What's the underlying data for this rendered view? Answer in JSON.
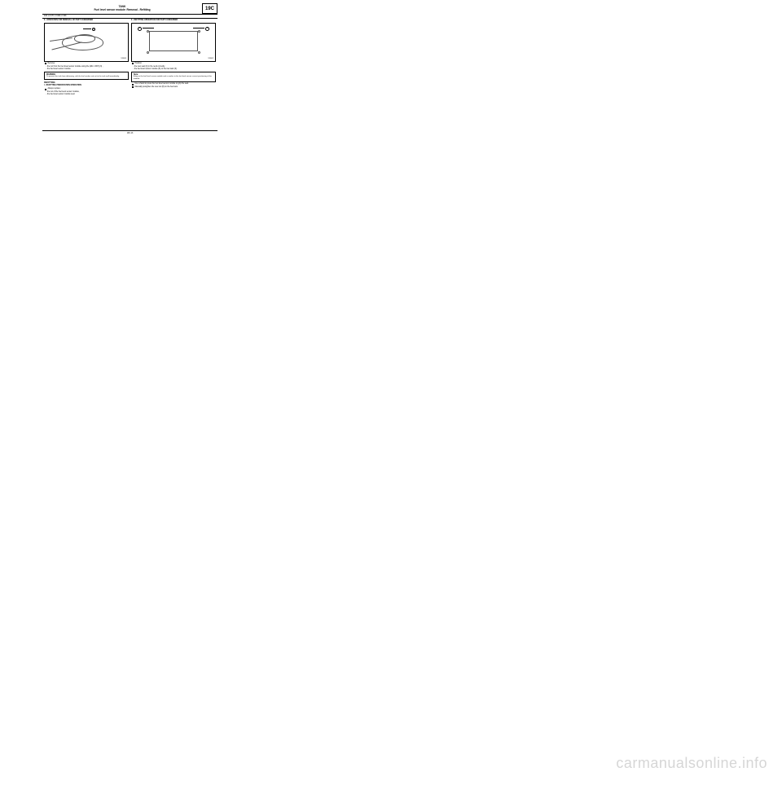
{
  "header": {
    "category": "TANK",
    "title": "Fuel level sensor module: Removal - Refitting",
    "code": "19C"
  },
  "subheader": "D4F or D7F or K4M or K9K",
  "left": {
    "sectionA": "II - OPERATION FOR REMOVAL OF PART CONCERNED",
    "fig_id": "126803",
    "fig_lblA": "",
    "fig_lbl3": "3",
    "remove": "Remove:",
    "remove1": "the nut from the fuel level sensor module using the (Mot. 1397) (3) ,",
    "remove2": "the fuel level sensor module.",
    "warning_title": "WARNING",
    "warning_body": "To prevent the tank from deforming, refit the fuel sender unit nut to the tank wall immediately.",
    "refitting": "REFITTING",
    "prep_title": "I - REFITTING PREPARATION OPERATION",
    "replace": "Always replace:",
    "replace1": "the nut of the fuel level sensor module,",
    "replace2": "the fuel level sensor module seal."
  },
  "right": {
    "sectionB": "II - REFITTING OPERATION FOR PART CONCERNED",
    "fig_id": "126802",
    "fig_lbl4": "4",
    "fig_lbl5": "5",
    "position": "Position:",
    "position1": "the new seal (4) in the neck correctly,",
    "position2": "the fuel level sensor module (5) on the fuel tank (6) .",
    "note_title": "Note:",
    "note_body": "A lug on the fuel level sensor module and a marker in the fuel tank ensure correct positioning of the module.",
    "step2": "Use a hand to press the fuel level sensor module to grip the seal.",
    "step3": "Manually pretighten the new nut (8) on the fuel tank."
  },
  "pagenum": "19C-13",
  "watermark": "carmanualsonline.info"
}
